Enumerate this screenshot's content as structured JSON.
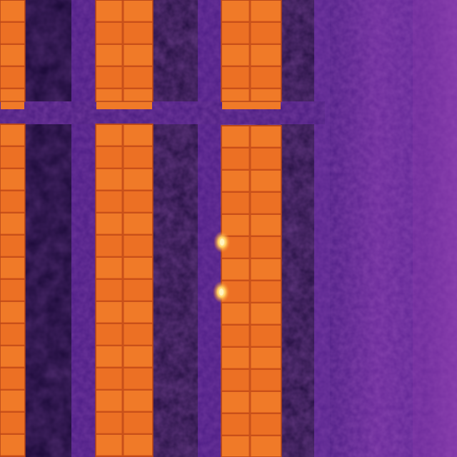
{
  "image": {
    "subject": "thermal-infrared-aerial-solar-farm",
    "palette": "inferno",
    "colors": {
      "panel_hot": "#f07a28",
      "panel_warm": "#e0641e",
      "panel_seam": "#c8501a",
      "frame_cold": "#1a083c",
      "shadow_dark": "#140626",
      "vegetation": "#3c1470",
      "soil": "#5a2490",
      "dirt_road": "#6a2a9a",
      "road_edge": "#8a3aa8",
      "hotspot": "#fff4c0"
    },
    "panel_columns": [
      {
        "id": "col-left-edge",
        "rows": 2
      },
      {
        "id": "col-center-left",
        "rows": 2
      },
      {
        "id": "col-center-right",
        "rows": 2
      }
    ],
    "hotspots": [
      {
        "id": "hotspot-1",
        "intensity": "high"
      },
      {
        "id": "hotspot-2",
        "intensity": "high"
      }
    ]
  }
}
